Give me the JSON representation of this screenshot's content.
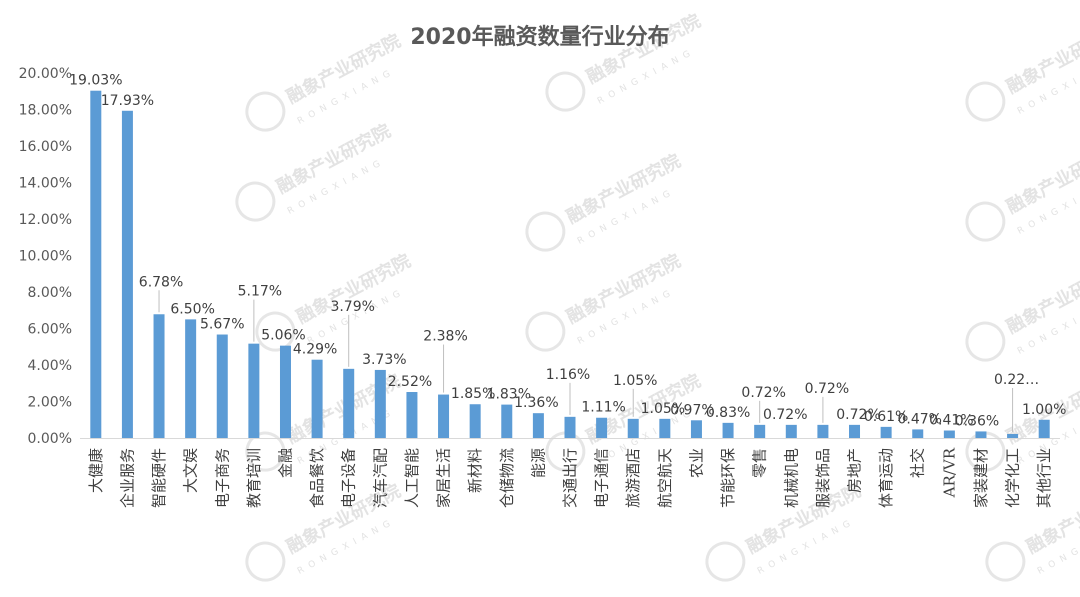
{
  "chart_data": {
    "type": "bar",
    "title": "2020年融资数量行业分布",
    "categories": [
      "大健康",
      "企业服务",
      "智能硬件",
      "大文娱",
      "电子商务",
      "教育培训",
      "金融",
      "食品餐饮",
      "电子设备",
      "汽车汽配",
      "人工智能",
      "家居生活",
      "新材料",
      "仓储物流",
      "能源",
      "交通出行",
      "电子通信",
      "旅游酒店",
      "航空航天",
      "农业",
      "节能环保",
      "零售",
      "机械机电",
      "服装饰品",
      "房地产",
      "体育运动",
      "社交",
      "AR/VR",
      "家装建材",
      "化学化工",
      "其他行业"
    ],
    "values": [
      19.03,
      17.93,
      6.78,
      6.5,
      5.67,
      5.17,
      5.06,
      4.29,
      3.79,
      3.73,
      2.52,
      2.38,
      1.85,
      1.83,
      1.36,
      1.16,
      1.11,
      1.05,
      1.05,
      0.97,
      0.83,
      0.72,
      0.72,
      0.72,
      0.72,
      0.61,
      0.47,
      0.41,
      0.36,
      0.22,
      1.0
    ],
    "data_labels": [
      "19.03%",
      "17.93%",
      "6.78%",
      "6.50%",
      "5.67%",
      "5.17%",
      "5.06%",
      "4.29%",
      "3.79%",
      "3.73%",
      "2.52%",
      "2.38%",
      "1.85%",
      "1.83%",
      "1.36%",
      "1.16%",
      "1.11%",
      "1.05%",
      "1.05%",
      "0.97%",
      "0.83%",
      "0.72%",
      "0.72%",
      "0.72%",
      "0.72%",
      "0.61%",
      "0.47%",
      "0.41%",
      "0.36%",
      "0.22…",
      "1.00%"
    ],
    "y_ticks": [
      "0.00%",
      "2.00%",
      "4.00%",
      "6.00%",
      "8.00%",
      "10.00%",
      "12.00%",
      "14.00%",
      "16.00%",
      "18.00%",
      "20.00%"
    ],
    "ylim": [
      0,
      20
    ],
    "grid": false,
    "legend": "none",
    "bar_color": "#5b9bd5",
    "watermark": {
      "text": "融象产业研究院",
      "subtext": "RONGXIANG"
    }
  }
}
